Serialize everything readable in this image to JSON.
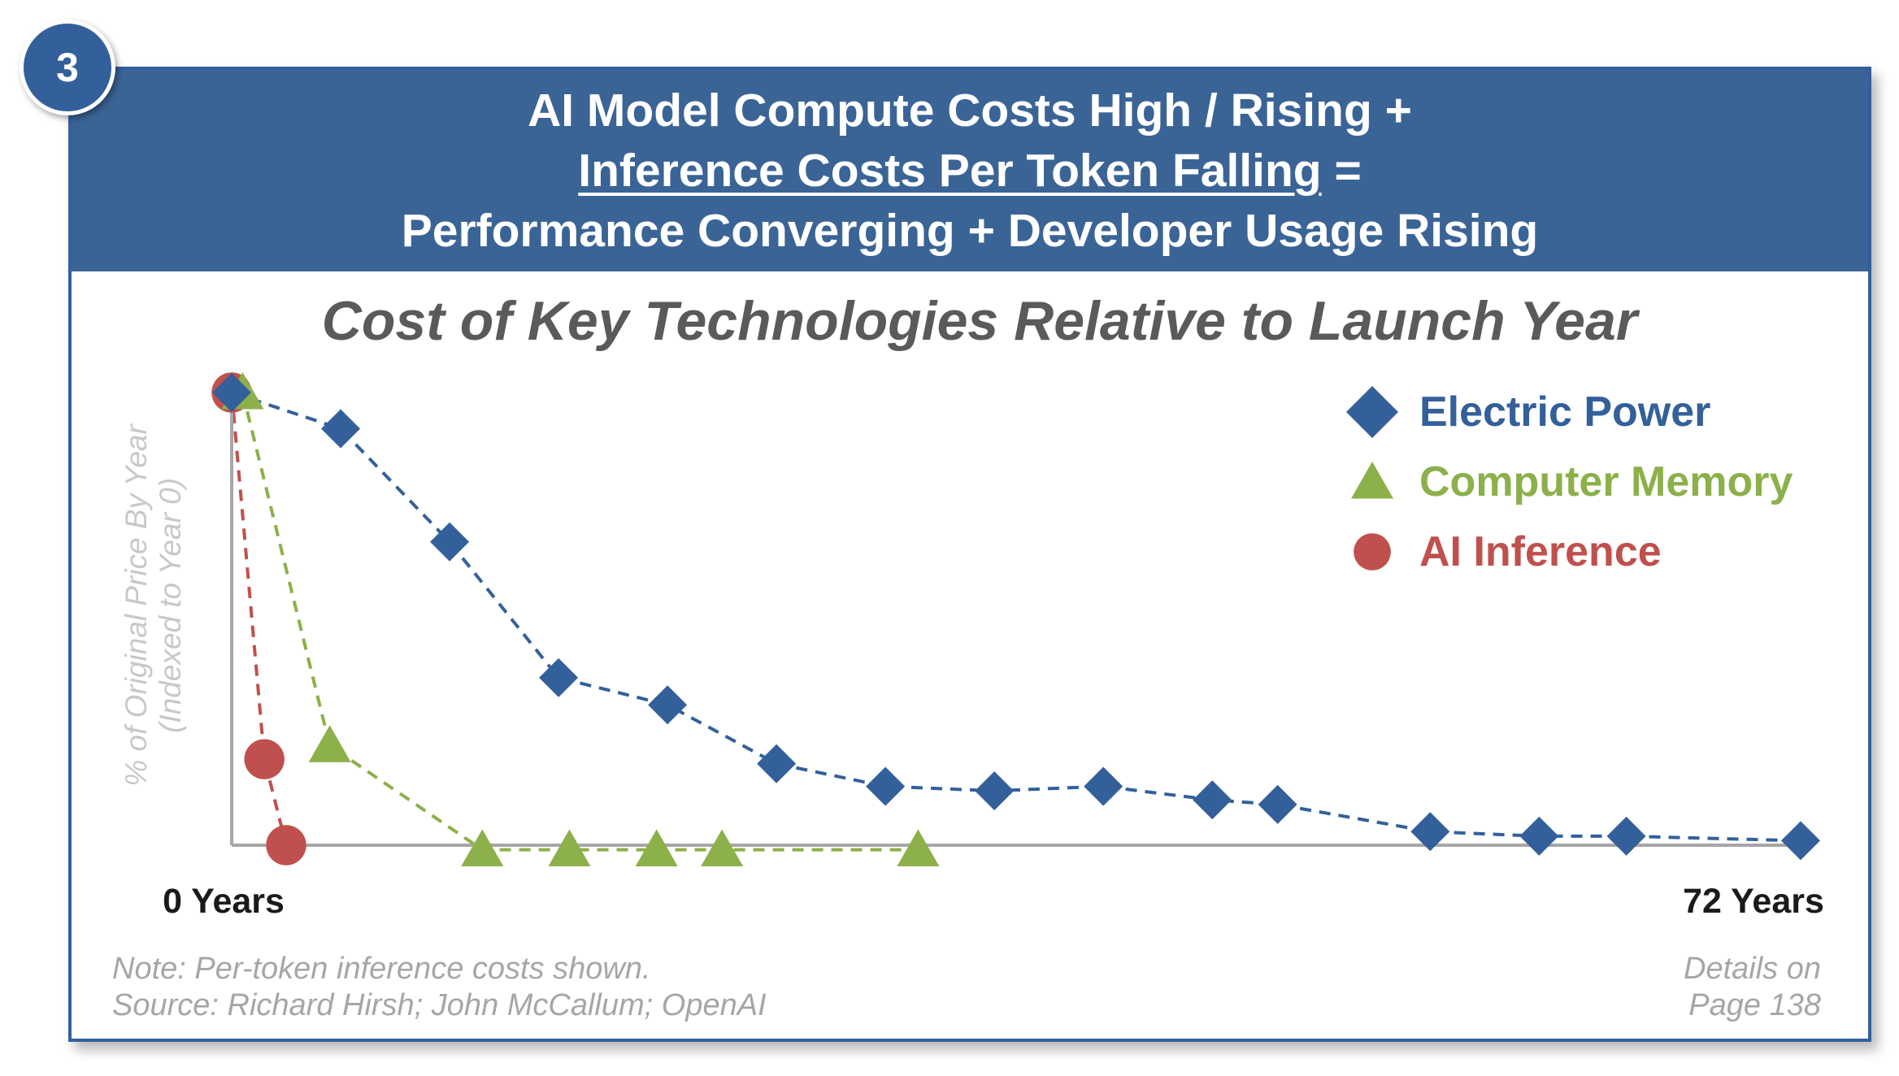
{
  "badge": "3",
  "header": {
    "line1": "AI Model Compute Costs High / Rising +",
    "line2_underlined": "Inference Costs Per Token Falling",
    "line2_rest": " =",
    "line3": "Performance Converging + Developer Usage Rising"
  },
  "footer": {
    "note": "Note: Per-token inference costs shown.",
    "source": "Source: Richard Hirsh; John McCallum; OpenAI",
    "details_line1": "Details on",
    "details_line2": "Page 138"
  },
  "chart_data": {
    "type": "line",
    "title": "Cost of Key Technologies Relative to Launch Year",
    "ylabel": "% of Original Price By Year",
    "ylabel_sub": "(Indexed to Year 0)",
    "x_min_label": "0 Years",
    "x_max_label": "72 Years",
    "xlim": [
      0,
      72
    ],
    "ylim": [
      0,
      100
    ],
    "legend_position": "top-right",
    "series": [
      {
        "name": "Electric Power",
        "color": "#33609A",
        "marker": "diamond",
        "x": [
          0,
          5,
          10,
          15,
          20,
          25,
          30,
          35,
          40,
          45,
          48,
          55,
          60,
          64,
          72
        ],
        "y": [
          100,
          92,
          67,
          37,
          31,
          18,
          13,
          12,
          13,
          10,
          9,
          3,
          2,
          2,
          1
        ]
      },
      {
        "name": "Computer Memory",
        "color": "#8CB04A",
        "marker": "triangle",
        "x": [
          0.5,
          4.5,
          11.5,
          15.5,
          19.5,
          22.5,
          31.5
        ],
        "y": [
          100,
          22,
          -1,
          -1,
          -1,
          -1,
          -1
        ]
      },
      {
        "name": "AI Inference",
        "color": "#C0504D",
        "marker": "circle",
        "x": [
          0,
          1.5,
          2.5
        ],
        "y": [
          100,
          19,
          0
        ]
      }
    ]
  }
}
